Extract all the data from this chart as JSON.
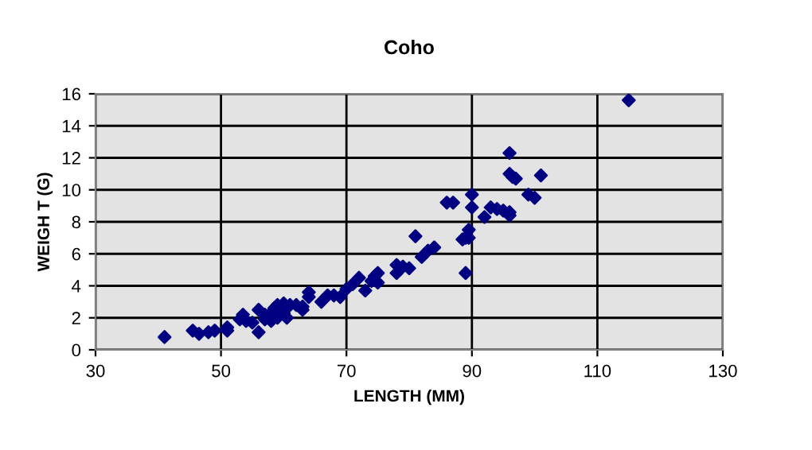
{
  "chart_data": {
    "type": "scatter",
    "title": "Coho",
    "xlabel": "LENGTH (MM)",
    "ylabel": "WEIGH T (G)",
    "xlim": [
      30,
      130
    ],
    "xticks": [
      30,
      50,
      70,
      90,
      110,
      130
    ],
    "ylim": [
      0,
      16
    ],
    "yticks": [
      0,
      2,
      4,
      6,
      8,
      10,
      12,
      14,
      16
    ],
    "grid": true,
    "marker": "diamond",
    "legend": false,
    "series": [
      {
        "color": "#000080",
        "x": [
          41,
          45.5,
          46.5,
          48,
          49,
          51,
          51,
          53,
          53.5,
          54,
          55,
          56,
          56,
          57,
          57,
          58,
          58,
          58.5,
          59,
          59,
          60,
          60,
          60.5,
          61,
          62,
          63,
          63,
          64,
          64,
          66,
          67,
          68,
          69,
          70,
          71,
          72,
          73,
          74,
          75,
          75,
          74.5,
          78,
          78,
          79,
          80,
          81,
          82,
          83,
          84,
          86,
          87,
          88.5,
          89,
          89,
          89.5,
          89.5,
          90,
          90,
          92,
          93,
          94,
          95,
          96,
          96,
          96,
          96,
          96.5,
          97,
          99,
          100,
          101,
          115
        ],
        "values": [
          0.8,
          1.2,
          1.0,
          1.1,
          1.2,
          1.4,
          1.2,
          1.9,
          2.2,
          1.8,
          1.7,
          2.5,
          1.1,
          1.9,
          2.2,
          2.3,
          1.8,
          2.6,
          2.0,
          2.8,
          2.3,
          2.9,
          2.0,
          2.8,
          2.8,
          2.5,
          2.7,
          3.3,
          3.6,
          3.0,
          3.4,
          3.4,
          3.3,
          3.8,
          4.1,
          4.5,
          3.7,
          4.3,
          4.8,
          4.2,
          4.6,
          4.8,
          5.3,
          5.2,
          5.1,
          7.1,
          5.8,
          6.2,
          6.4,
          9.2,
          9.2,
          6.9,
          7.0,
          4.8,
          7.5,
          7.0,
          9.7,
          8.9,
          8.3,
          8.9,
          8.8,
          8.7,
          8.4,
          8.6,
          12.3,
          11.0,
          10.8,
          10.7,
          9.7,
          9.5,
          10.9,
          15.6
        ]
      }
    ]
  }
}
